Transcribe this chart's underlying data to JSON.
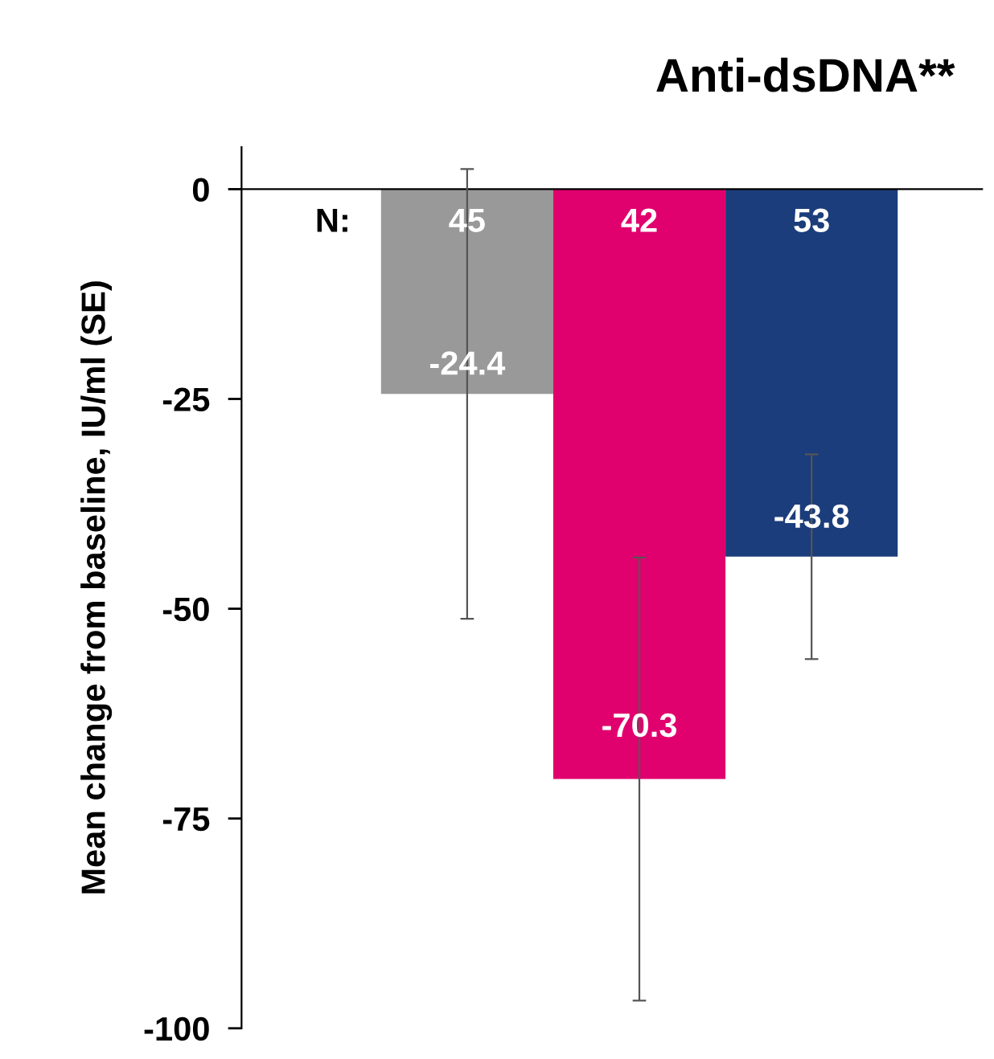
{
  "chart_data": {
    "type": "bar",
    "title": "Anti-dsDNA**",
    "ylabel": "Mean change from baseline, IU/ml (SE)",
    "categories": [
      null,
      null,
      null
    ],
    "values": [
      -24.4,
      -70.3,
      -43.8
    ],
    "colors": [
      "#999999",
      "#e0006e",
      "#1b3d7b"
    ],
    "errors": [
      26.8,
      26.4,
      12.2
    ],
    "data_labels": true,
    "annotations": [
      "N:",
      "45",
      "42",
      "53"
    ],
    "ylim": [
      -100,
      5
    ],
    "yticks": [
      0,
      -25,
      -50,
      -75,
      -100
    ]
  }
}
